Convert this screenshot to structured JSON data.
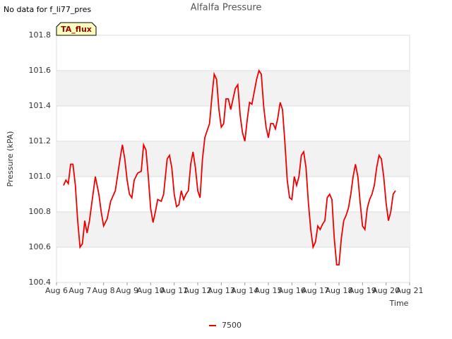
{
  "chart_data": {
    "type": "line",
    "title": "Alfalfa Pressure",
    "note": "No data for f_li77_pres",
    "annotation": "TA_flux",
    "xlabel": "Time",
    "ylabel": "Pressure (kPA)",
    "x": [
      6.3,
      6.4,
      6.5,
      6.6,
      6.7,
      6.8,
      6.9,
      7.0,
      7.1,
      7.2,
      7.3,
      7.4,
      7.5,
      7.65,
      7.8,
      7.9,
      8.0,
      8.15,
      8.3,
      8.5,
      8.7,
      8.8,
      8.9,
      9.0,
      9.1,
      9.2,
      9.3,
      9.45,
      9.6,
      9.7,
      9.8,
      9.9,
      10.0,
      10.1,
      10.2,
      10.3,
      10.45,
      10.55,
      10.7,
      10.8,
      10.9,
      11.0,
      11.1,
      11.2,
      11.3,
      11.4,
      11.5,
      11.6,
      11.7,
      11.8,
      11.9,
      12.0,
      12.1,
      12.2,
      12.3,
      12.4,
      12.5,
      12.6,
      12.7,
      12.8,
      12.9,
      13.0,
      13.1,
      13.2,
      13.3,
      13.4,
      13.5,
      13.6,
      13.7,
      13.8,
      13.9,
      14.0,
      14.1,
      14.2,
      14.3,
      14.4,
      14.5,
      14.6,
      14.7,
      14.8,
      14.9,
      15.0,
      15.1,
      15.2,
      15.3,
      15.4,
      15.5,
      15.6,
      15.7,
      15.8,
      15.9,
      16.0,
      16.1,
      16.2,
      16.3,
      16.4,
      16.5,
      16.6,
      16.7,
      16.8,
      16.9,
      17.0,
      17.1,
      17.2,
      17.3,
      17.4,
      17.5,
      17.6,
      17.7,
      17.8,
      17.9,
      18.0,
      18.1,
      18.2,
      18.3,
      18.4,
      18.5,
      18.6,
      18.7,
      18.8,
      18.9,
      19.0,
      19.1,
      19.2,
      19.3,
      19.4,
      19.5,
      19.6,
      19.7,
      19.8,
      19.9,
      20.0,
      20.1,
      20.2,
      20.3,
      20.4
    ],
    "series": [
      {
        "name": "7500",
        "color": "#ee0000",
        "values": [
          100.95,
          100.98,
          100.96,
          101.07,
          101.07,
          100.95,
          100.75,
          100.6,
          100.62,
          100.75,
          100.68,
          100.75,
          100.85,
          101.0,
          100.9,
          100.8,
          100.72,
          100.76,
          100.86,
          100.92,
          101.1,
          101.18,
          101.1,
          100.98,
          100.9,
          100.88,
          100.98,
          101.02,
          101.03,
          101.18,
          101.15,
          101.0,
          100.82,
          100.74,
          100.8,
          100.87,
          100.86,
          100.9,
          101.1,
          101.12,
          101.05,
          100.9,
          100.83,
          100.84,
          100.92,
          100.87,
          100.9,
          100.92,
          101.07,
          101.14,
          101.05,
          100.92,
          100.88,
          101.1,
          101.22,
          101.26,
          101.3,
          101.45,
          101.58,
          101.55,
          101.38,
          101.28,
          101.3,
          101.44,
          101.44,
          101.38,
          101.44,
          101.5,
          101.52,
          101.35,
          101.25,
          101.2,
          101.32,
          101.42,
          101.41,
          101.48,
          101.55,
          101.6,
          101.58,
          101.4,
          101.28,
          101.22,
          101.3,
          101.3,
          101.27,
          101.33,
          101.42,
          101.38,
          101.2,
          100.98,
          100.88,
          100.87,
          101.0,
          100.95,
          101.0,
          101.12,
          101.14,
          101.05,
          100.85,
          100.7,
          100.6,
          100.63,
          100.72,
          100.7,
          100.73,
          100.75,
          100.88,
          100.9,
          100.87,
          100.65,
          100.5,
          100.5,
          100.65,
          100.75,
          100.78,
          100.82,
          100.9,
          101.0,
          101.07,
          101.0,
          100.85,
          100.72,
          100.7,
          100.82,
          100.87,
          100.9,
          100.95,
          101.05,
          101.12,
          101.1,
          101.0,
          100.85,
          100.75,
          100.8,
          100.9,
          100.92
        ]
      }
    ],
    "xlim": [
      6,
      21
    ],
    "xticks": [
      {
        "value": 6,
        "label": "Aug 6"
      },
      {
        "value": 7,
        "label": "Aug 7"
      },
      {
        "value": 8,
        "label": "Aug 8"
      },
      {
        "value": 9,
        "label": "Aug 9"
      },
      {
        "value": 10,
        "label": "Aug 10"
      },
      {
        "value": 11,
        "label": "Aug 11"
      },
      {
        "value": 12,
        "label": "Aug 12"
      },
      {
        "value": 13,
        "label": "Aug 13"
      },
      {
        "value": 14,
        "label": "Aug 14"
      },
      {
        "value": 15,
        "label": "Aug 15"
      },
      {
        "value": 16,
        "label": "Aug 16"
      },
      {
        "value": 17,
        "label": "Aug 17"
      },
      {
        "value": 18,
        "label": "Aug 18"
      },
      {
        "value": 19,
        "label": "Aug 19"
      },
      {
        "value": 20,
        "label": "Aug 20"
      },
      {
        "value": 21,
        "label": "Aug 21"
      }
    ],
    "ylim": [
      100.4,
      101.8
    ],
    "yticks": [
      100.4,
      100.6,
      100.8,
      {
        "value": 101.0,
        "label": "101.0"
      },
      101.2,
      101.4,
      101.6,
      101.8
    ],
    "grid": true,
    "bands": true
  }
}
